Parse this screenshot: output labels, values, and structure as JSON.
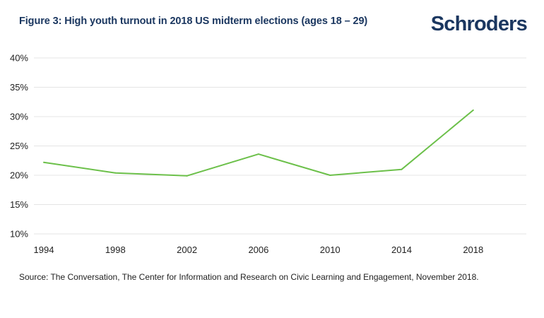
{
  "header": {
    "title": "Figure 3: High youth turnout in 2018 US midterm elections (ages 18 – 29)",
    "brand": "Schroders"
  },
  "footer": {
    "source": "Source: The Conversation, The Center for Information and Research on Civic Learning and Engagement, November 2018."
  },
  "chart_data": {
    "type": "line",
    "title": "Figure 3: High youth turnout in 2018 US midterm elections (ages 18 – 29)",
    "xlabel": "",
    "ylabel": "",
    "x_tick_labels": [
      "1994",
      "1998",
      "2002",
      "2006",
      "2010",
      "2014",
      "2018"
    ],
    "y_tick_labels": [
      "10%",
      "15%",
      "20%",
      "25%",
      "30%",
      "35%",
      "40%"
    ],
    "ylim": [
      10,
      40
    ],
    "grid": true,
    "legend": "none",
    "color": "#6cc04a",
    "series": [
      {
        "x": [
          1994,
          1998,
          2002,
          2006,
          2010,
          2014,
          2018
        ],
        "values": [
          22.2,
          20.4,
          19.9,
          23.6,
          20.0,
          21.0,
          31.1
        ]
      }
    ]
  }
}
